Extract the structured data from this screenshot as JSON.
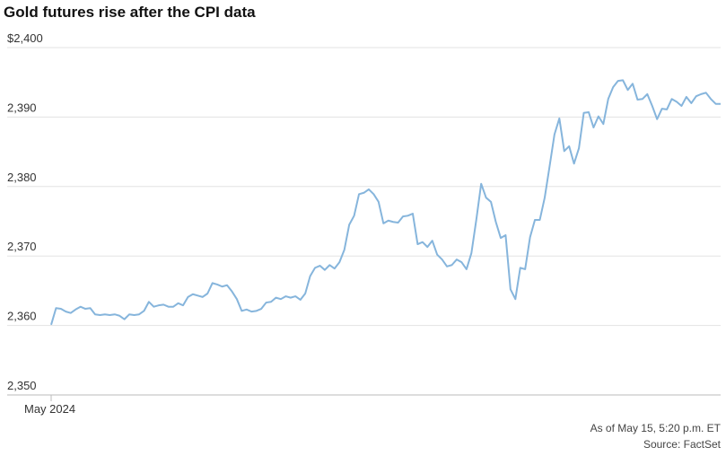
{
  "chart_data": {
    "type": "line",
    "title": "Gold futures rise after the CPI data",
    "categories": [
      "May 2024",
      null,
      null,
      null,
      null,
      null,
      null,
      null,
      null,
      null,
      null,
      null,
      null,
      null,
      null,
      null,
      null,
      null,
      null,
      null,
      null,
      null,
      null,
      null,
      null,
      null,
      null,
      null,
      null,
      null,
      null,
      null,
      null,
      null,
      null,
      null,
      null,
      null,
      null,
      null,
      null,
      null,
      null,
      null,
      null,
      null,
      null,
      null,
      null,
      null,
      null,
      null,
      null,
      null,
      null,
      null,
      null,
      null,
      null,
      null,
      null,
      null,
      null,
      null,
      null,
      null,
      null,
      null,
      null,
      null,
      null,
      null,
      null,
      null,
      null,
      null,
      null,
      null,
      null,
      null,
      null,
      null,
      null,
      null,
      null,
      null,
      null,
      null,
      null,
      null,
      null,
      null,
      null,
      null,
      null,
      null,
      null,
      null,
      null,
      null,
      null,
      null,
      null,
      null,
      null,
      null,
      null,
      null,
      null,
      null,
      null,
      null,
      null,
      null,
      null,
      null,
      null,
      null,
      null,
      null,
      null,
      null,
      null,
      null,
      null,
      null,
      null,
      null,
      null,
      null,
      null,
      null,
      null,
      null,
      null,
      null,
      null,
      null
    ],
    "series": [
      {
        "name": "Gold futures",
        "color": "#86b5dc",
        "values": [
          2360.1,
          2362.5,
          2362.4,
          2362.0,
          2361.8,
          2362.3,
          2362.7,
          2362.4,
          2362.5,
          2361.6,
          2361.5,
          2361.6,
          2361.5,
          2361.6,
          2361.4,
          2360.9,
          2361.6,
          2361.5,
          2361.6,
          2362.1,
          2363.4,
          2362.7,
          2362.9,
          2363.0,
          2362.7,
          2362.7,
          2363.2,
          2362.9,
          2364.1,
          2364.5,
          2364.3,
          2364.1,
          2364.6,
          2366.1,
          2365.9,
          2365.6,
          2365.8,
          2364.9,
          2363.8,
          2362.1,
          2362.3,
          2362.0,
          2362.1,
          2362.4,
          2363.3,
          2363.4,
          2364.0,
          2363.8,
          2364.2,
          2364.0,
          2364.2,
          2363.7,
          2364.6,
          2367.1,
          2368.3,
          2368.6,
          2368.0,
          2368.7,
          2368.2,
          2369.1,
          2370.9,
          2374.5,
          2375.8,
          2378.9,
          2379.1,
          2379.6,
          2378.9,
          2377.8,
          2374.7,
          2375.1,
          2374.9,
          2374.8,
          2375.7,
          2375.8,
          2376.1,
          2371.7,
          2372.0,
          2371.3,
          2372.2,
          2370.2,
          2369.5,
          2368.5,
          2368.7,
          2369.5,
          2369.1,
          2368.1,
          2370.4,
          2375.2,
          2380.4,
          2378.4,
          2377.8,
          2374.9,
          2372.6,
          2373.0,
          2365.2,
          2363.8,
          2368.3,
          2368.1,
          2372.7,
          2375.2,
          2375.2,
          2378.4,
          2382.9,
          2387.5,
          2389.8,
          2385.1,
          2385.8,
          2383.3,
          2385.5,
          2390.6,
          2390.7,
          2388.5,
          2390.1,
          2389.0,
          2392.6,
          2394.3,
          2395.2,
          2395.3,
          2393.9,
          2394.8,
          2392.5,
          2392.6,
          2393.3,
          2391.6,
          2389.7,
          2391.2,
          2391.1,
          2392.6,
          2392.2,
          2391.6,
          2392.9,
          2392.0,
          2393.0,
          2393.3,
          2393.5,
          2392.6,
          2391.9,
          2391.9
        ]
      }
    ],
    "ylim": [
      2350,
      2400
    ],
    "yticks": [
      {
        "value": 2350,
        "label": "2,350"
      },
      {
        "value": 2360,
        "label": "2,360"
      },
      {
        "value": 2370,
        "label": "2,370"
      },
      {
        "value": 2380,
        "label": "2,380"
      },
      {
        "value": 2390,
        "label": "2,390"
      },
      {
        "value": 2400,
        "label": "$2,400"
      }
    ],
    "grid": true,
    "note": "As of May 15, 5:20 p.m. ET",
    "source": "Source: FactSet"
  }
}
